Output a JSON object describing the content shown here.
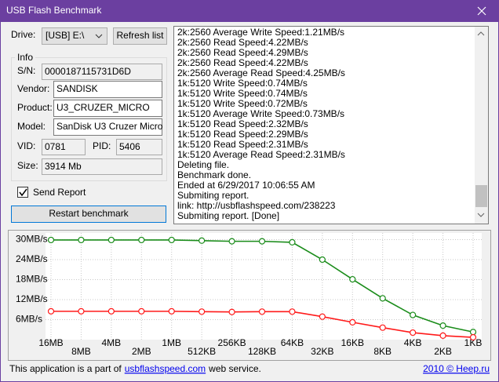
{
  "window": {
    "title": "USB Flash Benchmark"
  },
  "drive": {
    "label": "Drive:",
    "value": "[USB] E:\\",
    "refresh": "Refresh list"
  },
  "info": {
    "title": "Info",
    "sn": {
      "label": "S/N:",
      "value": "0000187115731D6D"
    },
    "vendor": {
      "label": "Vendor:",
      "value": "SANDISK"
    },
    "product": {
      "label": "Product:",
      "value": "U3_CRUZER_MICRO"
    },
    "model": {
      "label": "Model:",
      "value": "SanDisk U3 Cruzer Micro"
    },
    "vid": {
      "label": "VID:",
      "value": "0781"
    },
    "pid": {
      "label": "PID:",
      "value": "5406"
    },
    "size": {
      "label": "Size:",
      "value": "3914 Mb"
    }
  },
  "send_report": {
    "label": "Send Report",
    "checked": true
  },
  "restart": "Restart benchmark",
  "log": [
    "2k:2560 Average Write Speed:1.21MB/s",
    "2k:2560 Read Speed:4.22MB/s",
    "2k:2560 Read Speed:4.29MB/s",
    "2k:2560 Read Speed:4.22MB/s",
    "2k:2560 Average Read Speed:4.25MB/s",
    "1k:5120 Write Speed:0.74MB/s",
    "1k:5120 Write Speed:0.74MB/s",
    "1k:5120 Write Speed:0.72MB/s",
    "1k:5120 Average Write Speed:0.73MB/s",
    "1k:5120 Read Speed:2.32MB/s",
    "1k:5120 Read Speed:2.29MB/s",
    "1k:5120 Read Speed:2.31MB/s",
    "1k:5120 Average Read Speed:2.31MB/s",
    "Deleting file.",
    "Benchmark done.",
    "Ended at 6/29/2017 10:06:55 AM",
    "Submiting report.",
    "link: http://usbflashspeed.com/238223",
    "Submiting report. [Done]"
  ],
  "chart_data": {
    "type": "line",
    "categories": [
      "16MB",
      "8MB",
      "4MB",
      "2MB",
      "1MB",
      "512KB",
      "256KB",
      "128KB",
      "64KB",
      "32KB",
      "16KB",
      "8KB",
      "4KB",
      "2KB",
      "1KB"
    ],
    "series": [
      {
        "color": "#1a8c1a",
        "values": [
          29.9,
          29.9,
          29.9,
          29.9,
          29.9,
          29.7,
          29.5,
          29.5,
          29.2,
          24.0,
          18.1,
          12.4,
          7.4,
          4.2,
          2.3
        ]
      },
      {
        "color": "#ff1a1a",
        "values": [
          8.5,
          8.5,
          8.5,
          8.5,
          8.5,
          8.4,
          8.3,
          8.4,
          8.4,
          6.9,
          5.2,
          3.6,
          2.1,
          1.2,
          0.7
        ]
      }
    ],
    "ylim": [
      0,
      32
    ],
    "yticks": [
      {
        "value": 6,
        "label": "6MB/s"
      },
      {
        "value": 12,
        "label": "12MB/s"
      },
      {
        "value": 18,
        "label": "18MB/s"
      },
      {
        "value": 24,
        "label": "24MB/s"
      },
      {
        "value": 30,
        "label": "30MB/s"
      }
    ],
    "grid": true
  },
  "footer": {
    "text": "This application is a part of",
    "link": "usbflashspeed.com",
    "suffix": "web service.",
    "credit": "2010 © Heep.ru"
  }
}
